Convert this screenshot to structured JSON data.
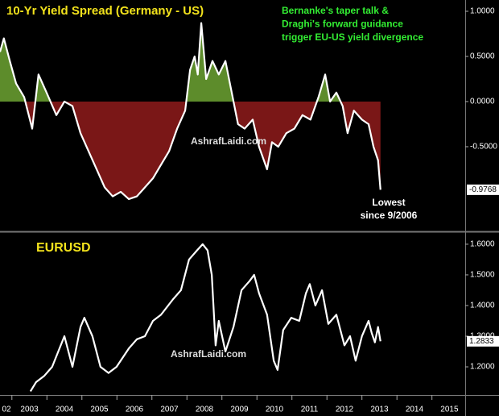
{
  "chart_data": [
    {
      "type": "area",
      "title": "10-Yr Yield Spread (Germany - US)",
      "annotations": [
        "Bernanke's taper talk &",
        "Draghi's forward guidance",
        "trigger EU-US yield divergence"
      ],
      "callout": [
        "Lowest",
        "since 9/2006"
      ],
      "watermark": "AshrafLaidi.com",
      "color": "#ffffff",
      "fill_above": "#5d8c2b",
      "fill_below": "#7a1717",
      "x": [
        2002.66,
        2002.77,
        2002.94,
        2003.12,
        2003.35,
        2003.58,
        2003.76,
        2003.99,
        2004.27,
        2004.5,
        2004.73,
        2004.96,
        2005.19,
        2005.42,
        2005.65,
        2005.88,
        2006.11,
        2006.34,
        2006.57,
        2006.8,
        2007.03,
        2007.26,
        2007.49,
        2007.72,
        2007.95,
        2008.09,
        2008.22,
        2008.31,
        2008.41,
        2008.55,
        2008.73,
        2008.91,
        2009.1,
        2009.28,
        2009.46,
        2009.65,
        2009.88,
        2010.06,
        2010.29,
        2010.43,
        2010.61,
        2010.84,
        2011.07,
        2011.3,
        2011.53,
        2011.76,
        2011.95,
        2012.09,
        2012.27,
        2012.45,
        2012.59,
        2012.77,
        2013.0,
        2013.19,
        2013.33,
        2013.46,
        2013.53
      ],
      "values": [
        0.55,
        0.7,
        0.45,
        0.2,
        0.05,
        -0.3,
        0.3,
        0.1,
        -0.15,
        0.0,
        -0.05,
        -0.35,
        -0.55,
        -0.75,
        -0.95,
        -1.05,
        -1.0,
        -1.08,
        -1.05,
        -0.95,
        -0.85,
        -0.7,
        -0.55,
        -0.3,
        -0.1,
        0.35,
        0.5,
        0.3,
        0.87,
        0.25,
        0.45,
        0.3,
        0.45,
        0.1,
        -0.25,
        -0.3,
        -0.2,
        -0.5,
        -0.75,
        -0.45,
        -0.5,
        -0.35,
        -0.3,
        -0.15,
        -0.2,
        0.05,
        0.3,
        0.0,
        0.1,
        -0.05,
        -0.35,
        -0.1,
        -0.2,
        -0.25,
        -0.5,
        -0.65,
        -0.9768
      ],
      "xlim": [
        2002.66,
        2015.95
      ],
      "ylim": [
        -1.42,
        1.125
      ],
      "yticks": [
        {
          "value": 1,
          "label": "1.0000"
        },
        {
          "value": 0.5,
          "label": "0.5000"
        },
        {
          "value": 0,
          "label": "0.0000"
        },
        {
          "value": -0.5,
          "label": "-0.5000"
        }
      ]
    },
    {
      "type": "line",
      "title": "EURUSD",
      "watermark": "AshrafLaidi.com",
      "color": "#ffffff",
      "x": [
        2003.53,
        2003.69,
        2003.92,
        2004.15,
        2004.5,
        2004.73,
        2004.96,
        2005.07,
        2005.3,
        2005.53,
        2005.76,
        2005.99,
        2006.34,
        2006.57,
        2006.8,
        2007.03,
        2007.26,
        2007.6,
        2007.83,
        2008.06,
        2008.29,
        2008.45,
        2008.59,
        2008.71,
        2008.82,
        2008.91,
        2009.1,
        2009.33,
        2009.56,
        2009.79,
        2009.92,
        2010.06,
        2010.29,
        2010.48,
        2010.59,
        2010.75,
        2010.98,
        2011.21,
        2011.4,
        2011.51,
        2011.67,
        2011.86,
        2012.04,
        2012.27,
        2012.5,
        2012.66,
        2012.82,
        2013.0,
        2013.19,
        2013.28,
        2013.37,
        2013.46,
        2013.53
      ],
      "values": [
        1.12,
        1.15,
        1.17,
        1.2,
        1.3,
        1.2,
        1.33,
        1.36,
        1.3,
        1.2,
        1.18,
        1.2,
        1.26,
        1.29,
        1.3,
        1.35,
        1.37,
        1.42,
        1.45,
        1.55,
        1.58,
        1.6,
        1.58,
        1.5,
        1.27,
        1.35,
        1.25,
        1.33,
        1.45,
        1.48,
        1.5,
        1.44,
        1.37,
        1.22,
        1.19,
        1.32,
        1.36,
        1.35,
        1.44,
        1.47,
        1.4,
        1.45,
        1.34,
        1.37,
        1.27,
        1.3,
        1.22,
        1.3,
        1.35,
        1.31,
        1.28,
        1.33,
        1.2833
      ],
      "xlim": [
        2002.66,
        2015.95
      ],
      "ylim": [
        1.108,
        1.634
      ],
      "yticks": [
        {
          "value": 1.6,
          "label": "1.6000"
        },
        {
          "value": 1.5,
          "label": "1.5000"
        },
        {
          "value": 1.4,
          "label": "1.4000"
        },
        {
          "value": 1.3,
          "label": "1.3000"
        },
        {
          "value": 1.2,
          "label": "1.2000"
        }
      ],
      "xticks": [
        {
          "value": 2002,
          "label": "02"
        },
        2003,
        2004,
        2005,
        2006,
        2007,
        2008,
        2009,
        2010,
        2011,
        2012,
        2013,
        2014,
        2015
      ]
    }
  ]
}
